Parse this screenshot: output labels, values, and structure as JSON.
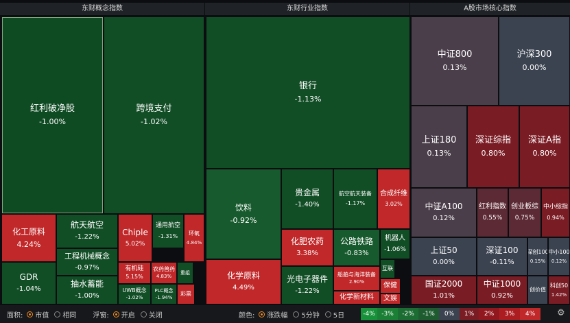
{
  "colors": {
    "g4": "#0c3f1d",
    "g3": "#114d25",
    "g2": "#175a2d",
    "g1": "#2a5a3a",
    "n0": "#3b4350",
    "p1": "#4a3e4a",
    "p2": "#5c2a35",
    "r1": "#7a1c24",
    "r2": "#92181f",
    "r3": "#ac1d22",
    "r4": "#c0282a",
    "sel": "#0e4a22"
  },
  "panels": [
    {
      "title": "东财概念指数",
      "tiles": [
        {
          "name": "红利破净股",
          "pct": "-1.00%",
          "color": "sel",
          "selected": true
        },
        {
          "name": "跨境支付",
          "pct": "-1.02%",
          "color": "g3"
        },
        {
          "name": "化工原料",
          "pct": "4.24%",
          "color": "r4"
        },
        {
          "name": "航天航空",
          "pct": "-1.22%",
          "color": "g3"
        },
        {
          "name": "工程机械概念",
          "pct": "-0.97%",
          "color": "g3"
        },
        {
          "name": "GDR",
          "pct": "-1.04%",
          "color": "g3"
        },
        {
          "name": "抽水蓄能",
          "pct": "-1.00%",
          "color": "g3"
        },
        {
          "name": "Chiple",
          "pct": "5.02%",
          "color": "r4"
        },
        {
          "name": "通用航空",
          "pct": "-1.31%",
          "color": "g3"
        },
        {
          "name": "环氧",
          "pct": "4.84%",
          "color": "r4"
        },
        {
          "name": "有机硅",
          "pct": "5.15%",
          "color": "r4"
        },
        {
          "name": "农药兽药",
          "pct": "4.83%",
          "color": "r4"
        },
        {
          "name": "重组",
          "pct": "",
          "color": "g3"
        },
        {
          "name": "UWB概念",
          "pct": "-1.02%",
          "color": "g3"
        },
        {
          "name": "PLC概念",
          "pct": "-1.94%",
          "color": "g3"
        },
        {
          "name": "彩票",
          "pct": "",
          "color": "r4"
        }
      ]
    },
    {
      "title": "东财行业指数",
      "tiles": [
        {
          "name": "银行",
          "pct": "-1.13%",
          "color": "g3"
        },
        {
          "name": "饮料",
          "pct": "-0.92%",
          "color": "g2"
        },
        {
          "name": "贵金属",
          "pct": "-1.40%",
          "color": "g3"
        },
        {
          "name": "航空航天装备",
          "pct": "-1.17%",
          "color": "g3"
        },
        {
          "name": "合成纤维",
          "pct": "3.02%",
          "color": "r4"
        },
        {
          "name": "化肥农药",
          "pct": "3.38%",
          "color": "r4"
        },
        {
          "name": "公路铁路",
          "pct": "-0.83%",
          "color": "g2"
        },
        {
          "name": "机器人",
          "pct": "-1.06%",
          "color": "g3"
        },
        {
          "name": "化学原料",
          "pct": "4.49%",
          "color": "r4"
        },
        {
          "name": "光电子器件",
          "pct": "-1.22%",
          "color": "g3"
        },
        {
          "name": "船舶与海洋装备",
          "pct": "2.90%",
          "color": "r4"
        },
        {
          "name": "互联",
          "pct": "",
          "color": "g3"
        },
        {
          "name": "化学新材料",
          "pct": "",
          "color": "r4"
        },
        {
          "name": "保健",
          "pct": "",
          "color": "r4"
        },
        {
          "name": "文娱",
          "pct": "",
          "color": "r4"
        }
      ]
    },
    {
      "title": "A股市场核心指数",
      "tiles": [
        {
          "name": "中证800",
          "pct": "0.13%",
          "color": "p1"
        },
        {
          "name": "沪深300",
          "pct": "0.00%",
          "color": "n0"
        },
        {
          "name": "上证180",
          "pct": "0.13%",
          "color": "p1"
        },
        {
          "name": "深证综指",
          "pct": "0.80%",
          "color": "r1"
        },
        {
          "name": "深证A指",
          "pct": "0.80%",
          "color": "r1"
        },
        {
          "name": "中证A100",
          "pct": "0.12%",
          "color": "p1"
        },
        {
          "name": "红利指数",
          "pct": "0.55%",
          "color": "p2"
        },
        {
          "name": "创业板综",
          "pct": "0.75%",
          "color": "p2"
        },
        {
          "name": "中小综指",
          "pct": "0.94%",
          "color": "r1"
        },
        {
          "name": "上证50",
          "pct": "0.00%",
          "color": "n0"
        },
        {
          "name": "深证100",
          "pct": "-0.11%",
          "color": "n0"
        },
        {
          "name": "深创100",
          "pct": "0.15%",
          "color": "n0"
        },
        {
          "name": "中小100",
          "pct": "0.12%",
          "color": "n0"
        },
        {
          "name": "国证2000",
          "pct": "1.01%",
          "color": "r1"
        },
        {
          "name": "中证1000",
          "pct": "0.92%",
          "color": "r1"
        },
        {
          "name": "创价值",
          "pct": "",
          "color": "n0"
        },
        {
          "name": "科创50",
          "pct": "1.42%",
          "color": "r1"
        }
      ]
    }
  ],
  "controls": {
    "area_label": "面积:",
    "area_options": [
      "市值",
      "相同"
    ],
    "float_label": "浮窗:",
    "float_options": [
      "开启",
      "关闭"
    ],
    "color_label": "颜色:",
    "color_options": [
      "涨跌幅",
      "5分钟",
      "5日"
    ]
  },
  "legend": [
    {
      "label": "-4%",
      "color": "#18923a"
    },
    {
      "label": "-3%",
      "color": "#1b7f36"
    },
    {
      "label": "-2%",
      "color": "#1c6d33"
    },
    {
      "label": "-1%",
      "color": "#1e5c30"
    },
    {
      "label": "0%",
      "color": "#3b4350"
    },
    {
      "label": "1%",
      "color": "#7a1c24"
    },
    {
      "label": "2%",
      "color": "#92181f"
    },
    {
      "label": "3%",
      "color": "#ac1d22"
    },
    {
      "label": "4%",
      "color": "#c0282a"
    }
  ],
  "settings_icon": "gear-icon"
}
